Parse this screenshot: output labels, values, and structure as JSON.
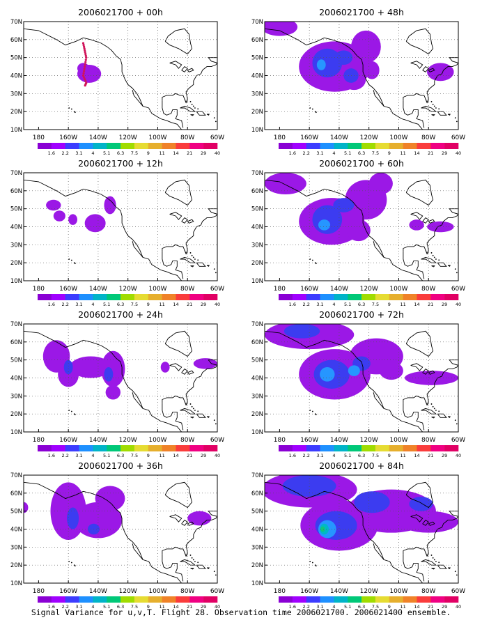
{
  "figure": {
    "caption": "Signal Variance for u,v,T. Flight 28. Observation time 2006021700. 2006021400 ensemble."
  },
  "axes": {
    "x_ticks": [
      "180",
      "160W",
      "140W",
      "120W",
      "100W",
      "80W",
      "60W"
    ],
    "x_range": [
      -190,
      -60
    ],
    "y_ticks": [
      "10N",
      "20N",
      "30N",
      "40N",
      "50N",
      "60N",
      "70N"
    ],
    "y_range": [
      10,
      70
    ],
    "grid": true,
    "grid_style": "dotted"
  },
  "colorbar": {
    "labels": [
      "1.6",
      "2.2",
      "3.1",
      "4",
      "5.1",
      "6.3",
      "7.5",
      "9",
      "11",
      "14",
      "21",
      "29",
      "40"
    ],
    "colors": [
      "#8a00d4",
      "#a000ff",
      "#3c3cff",
      "#1e90ff",
      "#00b4c8",
      "#00c878",
      "#a0dc00",
      "#e6dc32",
      "#e6af2d",
      "#f08228",
      "#fa3c3c",
      "#f00082",
      "#e10064"
    ]
  },
  "contour_colors": {
    "level1": "#9b18e6",
    "level2": "#3c3cf0",
    "level3": "#2696ff",
    "level4": "#00b9c6",
    "level5": "#11c67a",
    "marker": "#d0145a"
  },
  "chart_data": [
    {
      "type": "heatmap",
      "title": "2006021700 + 00h",
      "forecast_hour": 0,
      "regions": [
        {
          "center": [
            -146,
            41
          ],
          "radius": [
            8,
            5
          ],
          "level": 1
        },
        {
          "center": [
            -150,
            44
          ],
          "radius": [
            4,
            3
          ],
          "level": 1
        }
      ],
      "observation_track": [
        [
          -150,
          58
        ],
        [
          -149,
          54
        ],
        [
          -148,
          50
        ],
        [
          -149,
          45
        ],
        [
          -150,
          40
        ],
        [
          -148,
          36
        ],
        [
          -149,
          34
        ]
      ]
    },
    {
      "type": "heatmap",
      "title": "2006021700 + 12h",
      "forecast_hour": 12,
      "regions": [
        {
          "center": [
            -170,
            52
          ],
          "radius": [
            5,
            3
          ],
          "level": 1
        },
        {
          "center": [
            -166,
            46
          ],
          "radius": [
            4,
            3
          ],
          "level": 1
        },
        {
          "center": [
            -157,
            44
          ],
          "radius": [
            3,
            3
          ],
          "level": 1
        },
        {
          "center": [
            -142,
            42
          ],
          "radius": [
            7,
            5
          ],
          "level": 1
        },
        {
          "center": [
            -132,
            52
          ],
          "radius": [
            4,
            5
          ],
          "level": 1
        }
      ]
    },
    {
      "type": "heatmap",
      "title": "2006021700 + 24h",
      "forecast_hour": 24,
      "regions": [
        {
          "center": [
            -168,
            52
          ],
          "radius": [
            9,
            9
          ],
          "level": 1
        },
        {
          "center": [
            -160,
            42
          ],
          "radius": [
            7,
            7
          ],
          "level": 1
        },
        {
          "center": [
            -145,
            46
          ],
          "radius": [
            14,
            6
          ],
          "level": 1
        },
        {
          "center": [
            -130,
            45
          ],
          "radius": [
            8,
            10
          ],
          "level": 1
        },
        {
          "center": [
            -130,
            32
          ],
          "radius": [
            5,
            4
          ],
          "level": 1
        },
        {
          "center": [
            -160,
            46
          ],
          "radius": [
            3,
            4
          ],
          "level": 2
        },
        {
          "center": [
            -133,
            42
          ],
          "radius": [
            3,
            4
          ],
          "level": 2
        },
        {
          "center": [
            -95,
            46
          ],
          "radius": [
            3,
            3
          ],
          "level": 1
        },
        {
          "center": [
            -68,
            48
          ],
          "radius": [
            8,
            3
          ],
          "level": 1
        }
      ]
    },
    {
      "type": "heatmap",
      "title": "2006021700 + 36h",
      "forecast_hour": 36,
      "regions": [
        {
          "center": [
            -190,
            52
          ],
          "radius": [
            3,
            3
          ],
          "level": 1
        },
        {
          "center": [
            -160,
            50
          ],
          "radius": [
            12,
            16
          ],
          "level": 1
        },
        {
          "center": [
            -140,
            45
          ],
          "radius": [
            16,
            10
          ],
          "level": 1
        },
        {
          "center": [
            -132,
            57
          ],
          "radius": [
            10,
            7
          ],
          "level": 1
        },
        {
          "center": [
            -157,
            46
          ],
          "radius": [
            4,
            6
          ],
          "level": 2
        },
        {
          "center": [
            -143,
            40
          ],
          "radius": [
            4,
            3
          ],
          "level": 2
        },
        {
          "center": [
            -72,
            46
          ],
          "radius": [
            8,
            4
          ],
          "level": 1
        }
      ]
    },
    {
      "type": "heatmap",
      "title": "2006021700 + 48h",
      "forecast_hour": 48,
      "regions": [
        {
          "center": [
            -180,
            67
          ],
          "radius": [
            12,
            5
          ],
          "level": 1
        },
        {
          "center": [
            -143,
            45
          ],
          "radius": [
            24,
            14
          ],
          "level": 1
        },
        {
          "center": [
            -122,
            56
          ],
          "radius": [
            10,
            9
          ],
          "level": 1
        },
        {
          "center": [
            -130,
            38
          ],
          "radius": [
            8,
            6
          ],
          "level": 1
        },
        {
          "center": [
            -118,
            43
          ],
          "radius": [
            5,
            5
          ],
          "level": 1
        },
        {
          "center": [
            -148,
            47
          ],
          "radius": [
            10,
            8
          ],
          "level": 2
        },
        {
          "center": [
            -132,
            40
          ],
          "radius": [
            5,
            4
          ],
          "level": 2
        },
        {
          "center": [
            -137,
            50
          ],
          "radius": [
            6,
            4
          ],
          "level": 2
        },
        {
          "center": [
            -152,
            46
          ],
          "radius": [
            3,
            3
          ],
          "level": 3
        },
        {
          "center": [
            -72,
            42
          ],
          "radius": [
            9,
            5
          ],
          "level": 1
        }
      ]
    },
    {
      "type": "heatmap",
      "title": "2006021700 + 60h",
      "forecast_hour": 60,
      "regions": [
        {
          "center": [
            -176,
            64
          ],
          "radius": [
            14,
            6
          ],
          "level": 1
        },
        {
          "center": [
            -145,
            43
          ],
          "radius": [
            22,
            13
          ],
          "level": 1
        },
        {
          "center": [
            -122,
            55
          ],
          "radius": [
            14,
            11
          ],
          "level": 1
        },
        {
          "center": [
            -112,
            64
          ],
          "radius": [
            8,
            6
          ],
          "level": 1
        },
        {
          "center": [
            -127,
            38
          ],
          "radius": [
            8,
            6
          ],
          "level": 1
        },
        {
          "center": [
            -148,
            44
          ],
          "radius": [
            10,
            8
          ],
          "level": 2
        },
        {
          "center": [
            -137,
            52
          ],
          "radius": [
            7,
            4
          ],
          "level": 2
        },
        {
          "center": [
            -150,
            41
          ],
          "radius": [
            4,
            3
          ],
          "level": 3
        },
        {
          "center": [
            -88,
            41
          ],
          "radius": [
            5,
            3
          ],
          "level": 1
        },
        {
          "center": [
            -72,
            40
          ],
          "radius": [
            9,
            3
          ],
          "level": 1
        }
      ]
    },
    {
      "type": "heatmap",
      "title": "2006021700 + 72h",
      "forecast_hour": 72,
      "regions": [
        {
          "center": [
            -160,
            64
          ],
          "radius": [
            30,
            8
          ],
          "level": 1
        },
        {
          "center": [
            -143,
            42
          ],
          "radius": [
            24,
            14
          ],
          "level": 1
        },
        {
          "center": [
            -115,
            52
          ],
          "radius": [
            18,
            10
          ],
          "level": 1
        },
        {
          "center": [
            -105,
            44
          ],
          "radius": [
            8,
            5
          ],
          "level": 1
        },
        {
          "center": [
            -78,
            40
          ],
          "radius": [
            18,
            4
          ],
          "level": 1
        },
        {
          "center": [
            -165,
            66
          ],
          "radius": [
            12,
            4
          ],
          "level": 2
        },
        {
          "center": [
            -145,
            42
          ],
          "radius": [
            12,
            8
          ],
          "level": 2
        },
        {
          "center": [
            -125,
            48
          ],
          "radius": [
            6,
            4
          ],
          "level": 2
        },
        {
          "center": [
            -148,
            42
          ],
          "radius": [
            5,
            4
          ],
          "level": 3
        },
        {
          "center": [
            -130,
            44
          ],
          "radius": [
            4,
            3
          ],
          "level": 3
        }
      ]
    },
    {
      "type": "heatmap",
      "title": "2006021700 + 84h",
      "forecast_hour": 84,
      "regions": [
        {
          "center": [
            -160,
            62
          ],
          "radius": [
            32,
            10
          ],
          "level": 1
        },
        {
          "center": [
            -140,
            42
          ],
          "radius": [
            26,
            14
          ],
          "level": 1
        },
        {
          "center": [
            -105,
            50
          ],
          "radius": [
            30,
            12
          ],
          "level": 1
        },
        {
          "center": [
            -80,
            44
          ],
          "radius": [
            20,
            6
          ],
          "level": 1
        },
        {
          "center": [
            -160,
            64
          ],
          "radius": [
            18,
            6
          ],
          "level": 2
        },
        {
          "center": [
            -142,
            42
          ],
          "radius": [
            14,
            8
          ],
          "level": 2
        },
        {
          "center": [
            -118,
            55
          ],
          "radius": [
            12,
            6
          ],
          "level": 2
        },
        {
          "center": [
            -85,
            54
          ],
          "radius": [
            8,
            4
          ],
          "level": 2
        },
        {
          "center": [
            -148,
            40
          ],
          "radius": [
            6,
            5
          ],
          "level": 3
        },
        {
          "center": [
            -150,
            40
          ],
          "radius": [
            3,
            3
          ],
          "level": 4
        },
        {
          "center": [
            -151,
            40
          ],
          "radius": [
            1.5,
            1.5
          ],
          "level": 5
        }
      ]
    }
  ]
}
